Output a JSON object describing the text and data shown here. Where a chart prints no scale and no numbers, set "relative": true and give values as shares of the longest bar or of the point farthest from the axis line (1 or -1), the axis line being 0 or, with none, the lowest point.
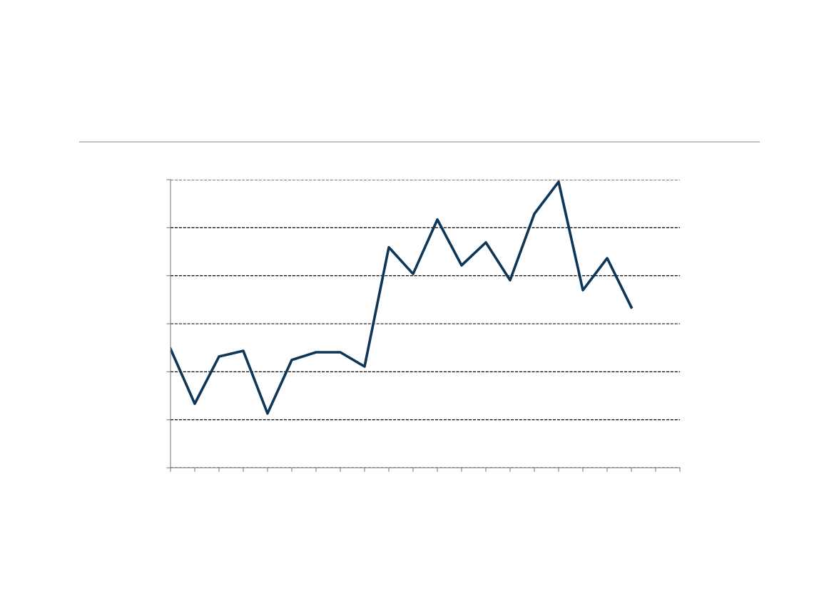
{
  "chart_data": {
    "type": "line",
    "relative": true,
    "grid": "y",
    "tick_labels": false,
    "marker": "none",
    "line_style": "solid",
    "categories": [
      null,
      null,
      null,
      null,
      null,
      null,
      null,
      null,
      null,
      null,
      null,
      null,
      null,
      null,
      null,
      null,
      null,
      null,
      null,
      null,
      null
    ],
    "series": [
      {
        "color": "#0e3657",
        "values": [
          0.416,
          0.224,
          0.389,
          0.409,
          0.19,
          0.377,
          0.404,
          0.404,
          0.354,
          0.771,
          0.678,
          0.868,
          0.708,
          0.788,
          0.656,
          0.888,
          1,
          0.621,
          0.733,
          0.561,
          null
        ]
      }
    ]
  }
}
